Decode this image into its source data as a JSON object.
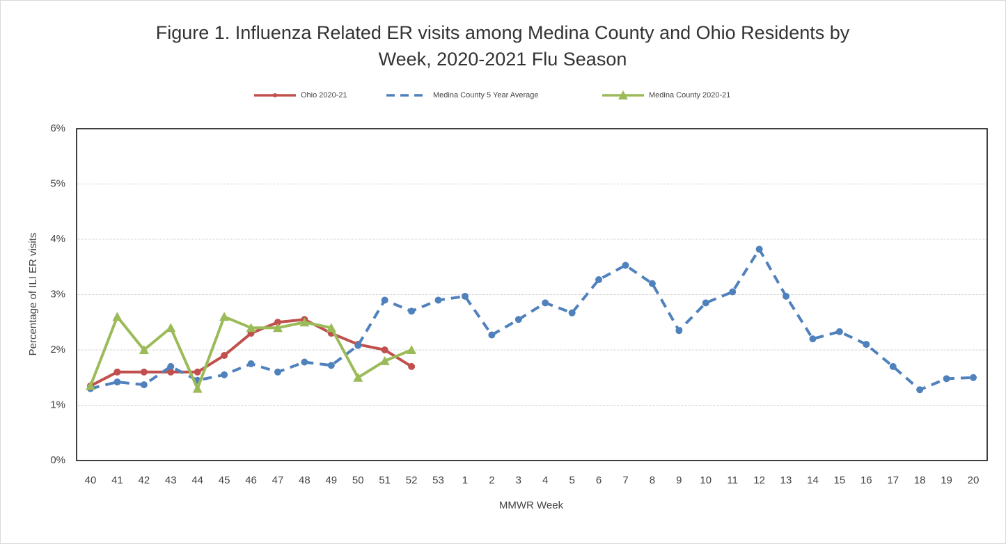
{
  "chart_data": {
    "type": "line",
    "title": "Figure 1. Influenza Related ER visits among Medina County and Ohio Residents by Week, 2020-2021 Flu Season",
    "xlabel": "MMWR Week",
    "ylabel": "Percentage of ILI ER visits",
    "categories": [
      "40",
      "41",
      "42",
      "43",
      "44",
      "45",
      "46",
      "47",
      "48",
      "49",
      "50",
      "51",
      "52",
      "53",
      "1",
      "2",
      "3",
      "4",
      "5",
      "6",
      "7",
      "8",
      "9",
      "10",
      "11",
      "12",
      "13",
      "14",
      "15",
      "16",
      "17",
      "18",
      "19",
      "20"
    ],
    "series": [
      {
        "name": "Ohio 2020-21",
        "color": "#c0504d",
        "marker": "circle",
        "dash": false,
        "values": [
          1.35,
          1.6,
          1.6,
          1.6,
          1.6,
          1.9,
          2.3,
          2.5,
          2.55,
          2.3,
          2.1,
          2.0,
          1.7,
          null,
          null,
          null,
          null,
          null,
          null,
          null,
          null,
          null,
          null,
          null,
          null,
          null,
          null,
          null,
          null,
          null,
          null,
          null,
          null,
          null
        ]
      },
      {
        "name": "Medina County 5 Year Average",
        "color": "#4f81bd",
        "marker": "circle",
        "dash": true,
        "values": [
          1.3,
          1.42,
          1.37,
          1.7,
          1.45,
          1.55,
          1.75,
          1.6,
          1.78,
          1.72,
          2.08,
          2.9,
          2.7,
          2.9,
          2.97,
          2.27,
          2.55,
          2.85,
          2.67,
          3.27,
          3.53,
          3.2,
          2.35,
          2.85,
          3.05,
          3.82,
          2.97,
          2.2,
          2.33,
          2.1,
          1.7,
          1.28,
          1.48,
          1.5
        ]
      },
      {
        "name": "Medina County 2020-21",
        "color": "#9bbb59",
        "marker": "triangle",
        "dash": false,
        "values": [
          1.35,
          2.6,
          2.0,
          2.4,
          1.3,
          2.6,
          2.4,
          2.4,
          2.5,
          2.4,
          1.5,
          1.8,
          2.0,
          null,
          null,
          null,
          null,
          null,
          null,
          null,
          null,
          null,
          null,
          null,
          null,
          null,
          null,
          null,
          null,
          null,
          null,
          null,
          null,
          null
        ]
      }
    ],
    "ylim": [
      0,
      6
    ],
    "yticks": [
      {
        "value": 0,
        "label": "0%"
      },
      {
        "value": 1,
        "label": "1%"
      },
      {
        "value": 2,
        "label": "2%"
      },
      {
        "value": 3,
        "label": "3%"
      },
      {
        "value": 4,
        "label": "4%"
      },
      {
        "value": 5,
        "label": "5%"
      },
      {
        "value": 6,
        "label": "6%"
      }
    ],
    "grid": true,
    "legend": "top"
  }
}
